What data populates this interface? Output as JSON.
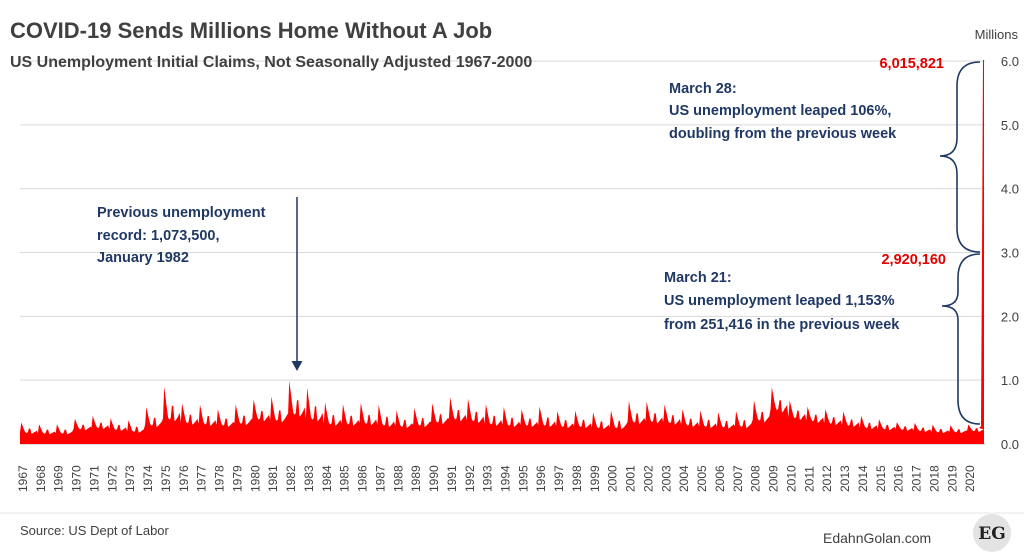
{
  "chart_data": {
    "type": "area",
    "title": "COVID-19 Sends Millions Home Without A Job",
    "subtitle": "US Unemployment Initial Claims, Not Seasonally Adjusted 1967-2000",
    "unit_label": "Millions",
    "ylim": [
      0,
      6
    ],
    "yticks": [
      "0.0",
      "1.0",
      "2.0",
      "3.0",
      "4.0",
      "5.0",
      "6.0"
    ],
    "grid": true,
    "color": "#ff0000",
    "x_tick_labels": [
      "1967",
      "1968",
      "1969",
      "1970",
      "1971",
      "1972",
      "1973",
      "1974",
      "1975",
      "1976",
      "1977",
      "1978",
      "1979",
      "1980",
      "1981",
      "1982",
      "1983",
      "1984",
      "1985",
      "1986",
      "1987",
      "1988",
      "1989",
      "1990",
      "1991",
      "1992",
      "1993",
      "1994",
      "1995",
      "1996",
      "1997",
      "1998",
      "1999",
      "2000",
      "2001",
      "2002",
      "2003",
      "2004",
      "2005",
      "2006",
      "2007",
      "2008",
      "2009",
      "2010",
      "2011",
      "2012",
      "2013",
      "2014",
      "2015",
      "2016",
      "2017",
      "2018",
      "2019",
      "2020"
    ],
    "series": [
      {
        "x": [
          1967,
          1968,
          1969,
          1970,
          1971,
          1972,
          1973,
          1974,
          1975,
          1976,
          1977,
          1978,
          1979,
          1980,
          1981,
          1982,
          1983,
          1984,
          1985,
          1986,
          1987,
          1988,
          1989,
          1990,
          1991,
          1992,
          1993,
          1994,
          1995,
          1996,
          1997,
          1998,
          1999,
          2000,
          2001,
          2002,
          2003,
          2004,
          2005,
          2006,
          2007,
          2008,
          2009,
          2010,
          2011,
          2012,
          2013,
          2014,
          2015,
          2016,
          2017,
          2018,
          2019,
          2020
        ],
        "y_peak_millions": [
          0.36,
          0.33,
          0.33,
          0.42,
          0.47,
          0.43,
          0.4,
          0.62,
          0.97,
          0.68,
          0.66,
          0.58,
          0.66,
          0.74,
          0.8,
          1.07,
          0.95,
          0.7,
          0.67,
          0.69,
          0.66,
          0.56,
          0.6,
          0.68,
          0.78,
          0.76,
          0.67,
          0.62,
          0.58,
          0.63,
          0.55,
          0.56,
          0.53,
          0.56,
          0.72,
          0.71,
          0.66,
          0.58,
          0.56,
          0.53,
          0.55,
          0.73,
          0.94,
          0.72,
          0.62,
          0.58,
          0.54,
          0.47,
          0.41,
          0.36,
          0.35,
          0.32,
          0.31,
          0.32
        ],
        "y_base_millions": [
          0.18,
          0.17,
          0.17,
          0.24,
          0.26,
          0.23,
          0.2,
          0.3,
          0.4,
          0.34,
          0.32,
          0.3,
          0.33,
          0.4,
          0.38,
          0.48,
          0.4,
          0.32,
          0.32,
          0.33,
          0.3,
          0.28,
          0.3,
          0.35,
          0.4,
          0.37,
          0.32,
          0.3,
          0.3,
          0.3,
          0.28,
          0.28,
          0.26,
          0.26,
          0.35,
          0.36,
          0.34,
          0.3,
          0.28,
          0.27,
          0.28,
          0.38,
          0.55,
          0.42,
          0.37,
          0.33,
          0.3,
          0.26,
          0.24,
          0.23,
          0.21,
          0.19,
          0.19,
          0.21
        ]
      }
    ],
    "final_points": [
      {
        "date": "March 21, 2020",
        "value": 2920160,
        "label": "2,920,160"
      },
      {
        "date": "March 28, 2020",
        "value": 6015821,
        "label": "6,015,821"
      }
    ],
    "annotations": {
      "record": [
        "Previous unemployment",
        "record: 1,073,500,",
        "January 1982"
      ],
      "march28": [
        "March 28:",
        "US unemployment leaped 106%,",
        "doubling from the previous week"
      ],
      "march21": [
        "March 21:",
        "US unemployment leaped 1,153%",
        "from 251,416 in the previous week"
      ]
    }
  },
  "colors": {
    "series": "#ff0000",
    "annotation": "#1f3864",
    "highlight_value": "#e00000",
    "text": "#404040",
    "grid": "#d9d9d9"
  },
  "footer": {
    "source": "Source: US Dept of Labor",
    "credit": "EdahnGolan.com",
    "logo_text": "EG"
  }
}
